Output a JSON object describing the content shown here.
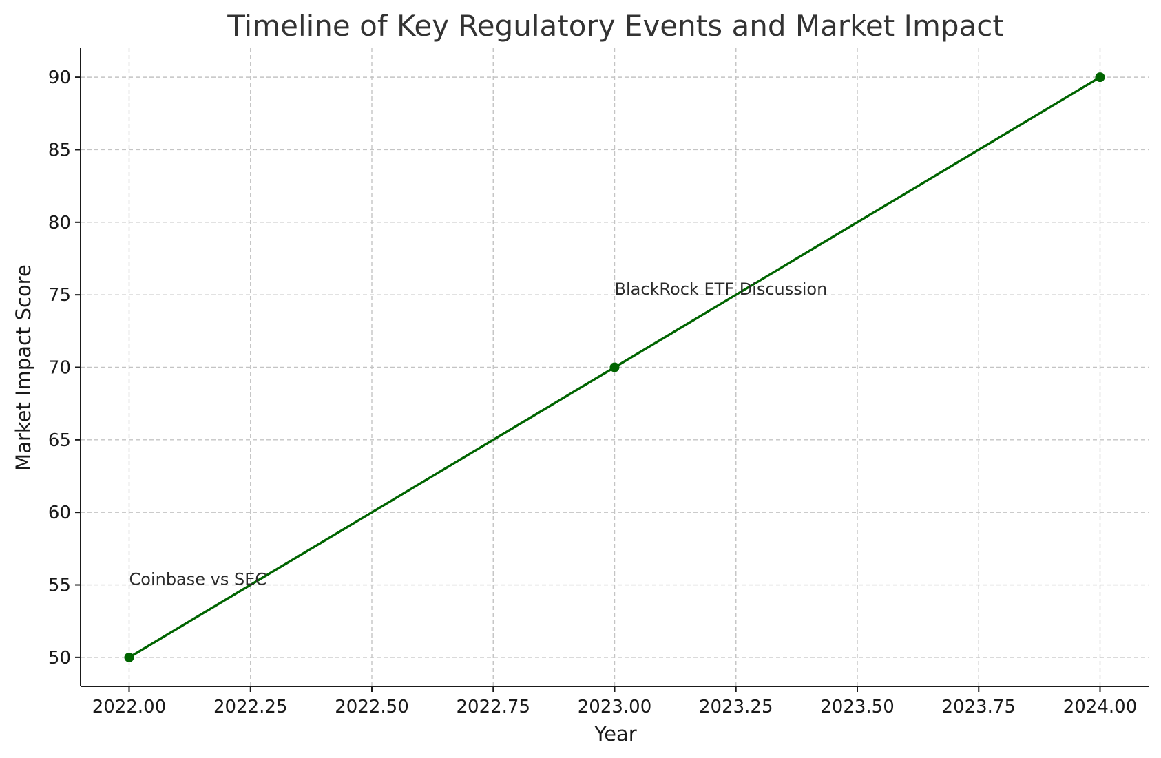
{
  "chart_data": {
    "type": "line",
    "title": "Timeline of Key Regulatory Events and Market Impact",
    "xlabel": "Year",
    "ylabel": "Market Impact Score",
    "xlim": [
      2021.9,
      2024.1
    ],
    "ylim": [
      48,
      92
    ],
    "xticks": [
      2022.0,
      2022.25,
      2022.5,
      2022.75,
      2023.0,
      2023.25,
      2023.5,
      2023.75,
      2024.0
    ],
    "xtick_labels": [
      "2022.00",
      "2022.25",
      "2022.50",
      "2022.75",
      "2023.00",
      "2023.25",
      "2023.50",
      "2023.75",
      "2024.00"
    ],
    "yticks": [
      50,
      55,
      60,
      65,
      70,
      75,
      80,
      85,
      90
    ],
    "ytick_labels": [
      "50",
      "55",
      "60",
      "65",
      "70",
      "75",
      "80",
      "85",
      "90"
    ],
    "grid": true,
    "series": [
      {
        "x": [
          2022.0,
          2023.0,
          2024.0
        ],
        "y": [
          50,
          70,
          90
        ],
        "color": "#006400",
        "marker": "circle"
      }
    ],
    "annotations": [
      {
        "text": "Coinbase vs SEC",
        "x": 2022.0,
        "y": 55
      },
      {
        "text": "BlackRock ETF Discussion",
        "x": 2023.0,
        "y": 75
      }
    ]
  }
}
